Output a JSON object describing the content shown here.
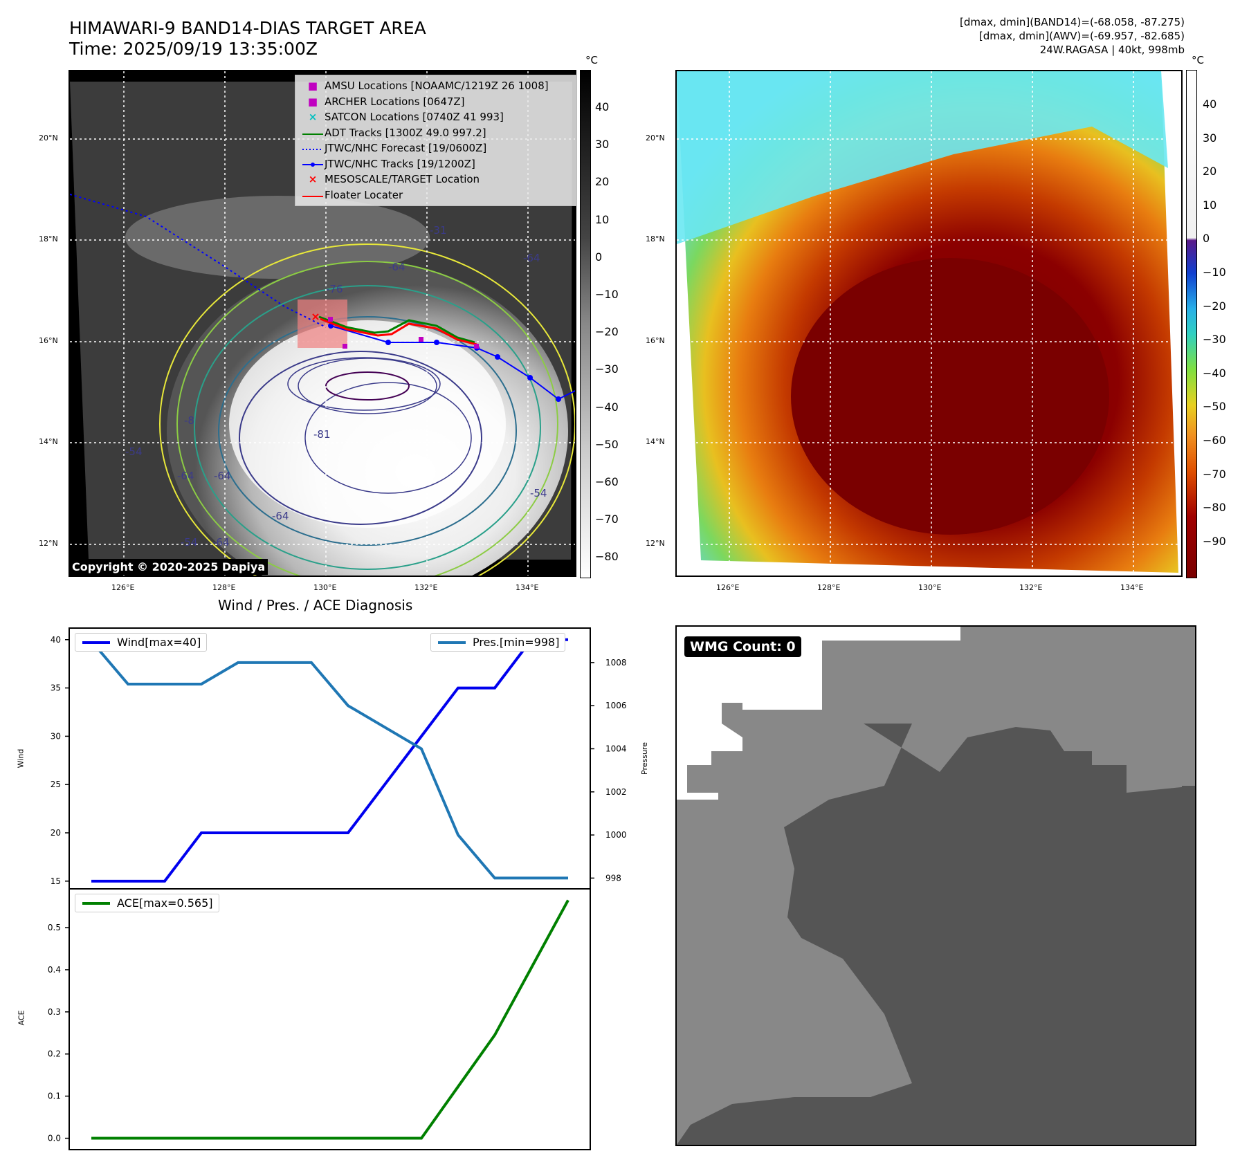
{
  "header": {
    "title_line1": "HIMAWARI-9 BAND14-DIAS TARGET AREA",
    "title_line2": "Time: 2025/09/19 13:35:00Z",
    "info_line1": "[dmax, dmin](BAND14)=(-68.058, -87.275)",
    "info_line2": "[dmax, dmin](AWV)=(-69.957, -82.685)",
    "info_line3": "24W.RAGASA | 40kt, 998mb"
  },
  "map": {
    "lat_labels": [
      "20°N",
      "18°N",
      "16°N",
      "14°N",
      "12°N"
    ],
    "lon_labels": [
      "126°E",
      "128°E",
      "130°E",
      "132°E",
      "134°E"
    ],
    "contour_labels": [
      "-64",
      "-76",
      "-64",
      "-81",
      "-64",
      "-64",
      "-54",
      "-64",
      "-54",
      "-54",
      "-31",
      "-64",
      "-8"
    ],
    "copyright": "Copyright © 2020-2025 Dapiya",
    "unit": "°C",
    "colorbar_left_ticks": [
      "40",
      "30",
      "20",
      "10",
      "0",
      "−10",
      "−20",
      "−30",
      "−40",
      "−50",
      "−60",
      "−70",
      "−80"
    ],
    "colorbar_right_ticks": [
      "40",
      "30",
      "20",
      "10",
      "0",
      "−10",
      "−20",
      "−30",
      "−40",
      "−50",
      "−60",
      "−70",
      "−80",
      "−90"
    ],
    "legend": [
      {
        "label": "AMSU Locations [NOAAMC/1219Z 26 1008]",
        "symbol": "■",
        "color": "#c000c0"
      },
      {
        "label": "ARCHER Locations [0647Z]",
        "symbol": "■",
        "color": "#c000c0"
      },
      {
        "label": "SATCON Locations [0740Z 41 993]",
        "symbol": "×",
        "color": "#00bfbf"
      },
      {
        "label": "ADT Tracks [1300Z 49.0 997.2]",
        "symbol": "line",
        "color": "#008000"
      },
      {
        "label": "JTWC/NHC Forecast [19/0600Z]",
        "symbol": "dotted",
        "color": "#0000ff"
      },
      {
        "label": "JTWC/NHC Tracks [19/1200Z]",
        "symbol": "line-dot",
        "color": "#0000ff"
      },
      {
        "label": "MESOSCALE/TARGET Location",
        "symbol": "×",
        "color": "#ff0000"
      },
      {
        "label": "Floater Locater",
        "symbol": "line",
        "color": "#ff0000"
      }
    ]
  },
  "diagnosis": {
    "title": "Wind / Pres. / ACE Diagnosis",
    "wind_legend": "Wind[max=40]",
    "pres_legend": "Pres.[min=998]",
    "ace_legend": "ACE[max=0.565]",
    "wind_ylabel": "Wind",
    "pres_ylabel": "Pressure",
    "ace_ylabel": "ACE",
    "wmg_label": "WMG Count: 0"
  },
  "chart_data": [
    {
      "type": "line",
      "title": "Wind / Pres. / ACE Diagnosis",
      "x": [
        0,
        1,
        2,
        3,
        4,
        5,
        6,
        7,
        8,
        9,
        10,
        11,
        12,
        13
      ],
      "series": [
        {
          "name": "Wind[max=40]",
          "axis": "left",
          "color": "#0000ee",
          "values": [
            15,
            15,
            15,
            20,
            20,
            20,
            20,
            20,
            25,
            30,
            35,
            35,
            40,
            40
          ]
        },
        {
          "name": "Pres.[min=998]",
          "axis": "right",
          "color": "#1f77b4",
          "values": [
            1009,
            1007,
            1007,
            1007,
            1008,
            1008,
            1008,
            1006,
            1005,
            1004,
            1000,
            998,
            998,
            998
          ]
        }
      ],
      "ylabel": "Wind",
      "ylim": [
        14.2,
        41.2
      ],
      "y2label": "Pressure",
      "y2lim": [
        997.5,
        1009.6
      ],
      "yticks": [
        15,
        20,
        25,
        30,
        35,
        40
      ],
      "y2ticks": [
        998,
        1000,
        1002,
        1004,
        1006,
        1008
      ]
    },
    {
      "type": "line",
      "x": [
        0,
        1,
        2,
        3,
        4,
        5,
        6,
        7,
        8,
        9,
        10,
        11,
        12,
        13
      ],
      "series": [
        {
          "name": "ACE[max=0.565]",
          "color": "#008000",
          "values": [
            0,
            0,
            0,
            0,
            0,
            0,
            0,
            0,
            0,
            0,
            0.1225,
            0.245,
            0.405,
            0.565
          ]
        }
      ],
      "ylabel": "ACE",
      "ylim": [
        -0.027,
        0.592
      ],
      "yticks": [
        0.0,
        0.1,
        0.2,
        0.3,
        0.4,
        0.5
      ]
    }
  ]
}
